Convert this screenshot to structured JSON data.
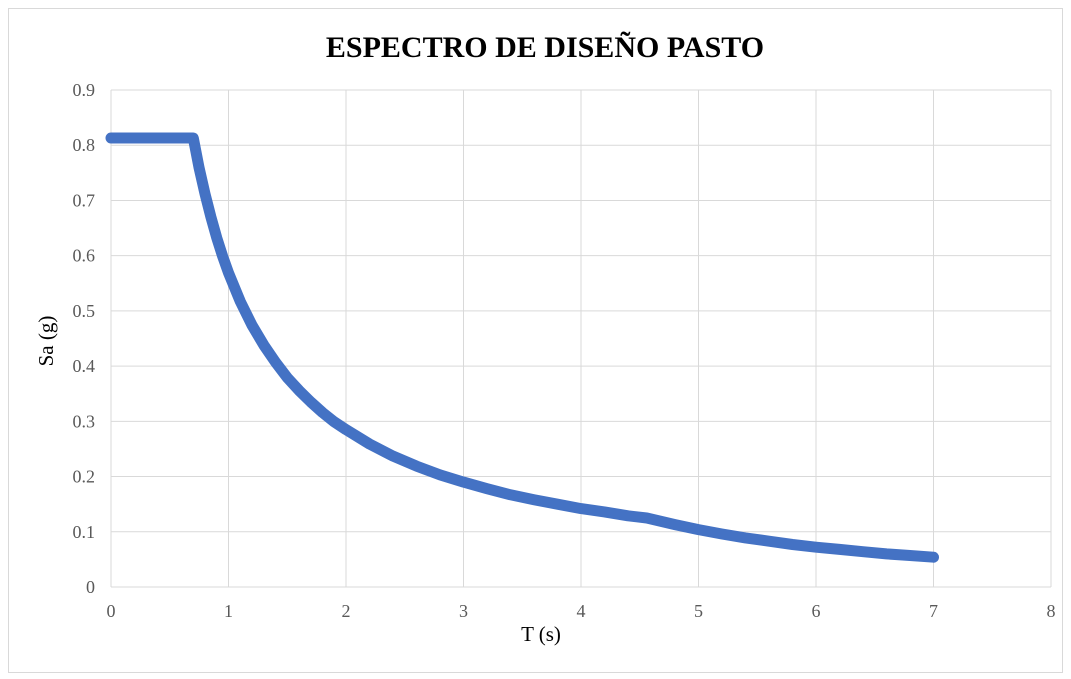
{
  "chart_data": {
    "type": "line",
    "title": "ESPECTRO DE DISEÑO PASTO",
    "xlabel": "T (s)",
    "ylabel": "Sa (g)",
    "xlim": [
      0,
      8
    ],
    "ylim": [
      0,
      0.9
    ],
    "x_ticks": [
      "0",
      "1",
      "2",
      "3",
      "4",
      "5",
      "6",
      "7",
      "8"
    ],
    "y_ticks": [
      "0",
      "0.1",
      "0.2",
      "0.3",
      "0.4",
      "0.5",
      "0.6",
      "0.7",
      "0.8",
      "0.9"
    ],
    "grid": true,
    "legend": "none",
    "series": [
      {
        "color": "#4472C4",
        "points": [
          [
            0,
            0.813
          ],
          [
            0.1,
            0.813
          ],
          [
            0.2,
            0.813
          ],
          [
            0.3,
            0.813
          ],
          [
            0.4,
            0.813
          ],
          [
            0.5,
            0.813
          ],
          [
            0.6,
            0.813
          ],
          [
            0.7,
            0.813
          ],
          [
            0.75,
            0.759
          ],
          [
            0.8,
            0.712
          ],
          [
            0.85,
            0.67
          ],
          [
            0.9,
            0.632
          ],
          [
            0.95,
            0.599
          ],
          [
            1.0,
            0.569
          ],
          [
            1.1,
            0.517
          ],
          [
            1.2,
            0.474
          ],
          [
            1.3,
            0.438
          ],
          [
            1.4,
            0.407
          ],
          [
            1.5,
            0.379
          ],
          [
            1.6,
            0.356
          ],
          [
            1.7,
            0.335
          ],
          [
            1.8,
            0.316
          ],
          [
            1.9,
            0.299
          ],
          [
            2.0,
            0.285
          ],
          [
            2.2,
            0.259
          ],
          [
            2.4,
            0.237
          ],
          [
            2.6,
            0.219
          ],
          [
            2.8,
            0.203
          ],
          [
            3.0,
            0.19
          ],
          [
            3.2,
            0.178
          ],
          [
            3.4,
            0.167
          ],
          [
            3.6,
            0.158
          ],
          [
            3.8,
            0.15
          ],
          [
            4.0,
            0.142
          ],
          [
            4.2,
            0.136
          ],
          [
            4.4,
            0.129
          ],
          [
            4.56,
            0.125
          ],
          [
            4.8,
            0.113
          ],
          [
            5.0,
            0.104
          ],
          [
            5.2,
            0.096
          ],
          [
            5.4,
            0.089
          ],
          [
            5.6,
            0.083
          ],
          [
            5.8,
            0.077
          ],
          [
            6.0,
            0.072
          ],
          [
            6.2,
            0.068
          ],
          [
            6.4,
            0.064
          ],
          [
            6.6,
            0.06
          ],
          [
            6.8,
            0.057
          ],
          [
            7.0,
            0.054
          ]
        ]
      }
    ]
  }
}
